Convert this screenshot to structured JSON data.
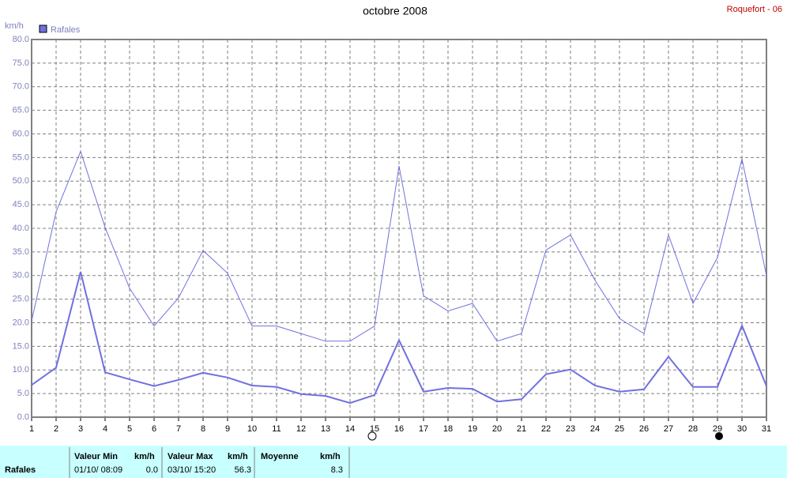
{
  "chart_data": {
    "type": "line",
    "title": "octobre 2008",
    "subtitle": "Roquefort - 06",
    "y_label": "km/h",
    "x": [
      1,
      2,
      3,
      4,
      5,
      6,
      7,
      8,
      9,
      10,
      11,
      12,
      13,
      14,
      15,
      16,
      17,
      18,
      19,
      20,
      21,
      22,
      23,
      24,
      25,
      26,
      27,
      28,
      29,
      30,
      31
    ],
    "xlim": [
      1,
      31
    ],
    "xticks": [
      1,
      2,
      3,
      4,
      5,
      6,
      7,
      8,
      9,
      10,
      11,
      12,
      13,
      14,
      15,
      16,
      17,
      18,
      19,
      20,
      21,
      22,
      23,
      24,
      25,
      26,
      27,
      28,
      29,
      30,
      31
    ],
    "ylim": [
      0,
      80
    ],
    "yticks": [
      {
        "value": 0,
        "label": "0.0"
      },
      {
        "value": 5,
        "label": "5.0"
      },
      {
        "value": 10,
        "label": "10.0"
      },
      {
        "value": 15,
        "label": "15.0"
      },
      {
        "value": 20,
        "label": "20.0"
      },
      {
        "value": 25,
        "label": "25.0"
      },
      {
        "value": 30,
        "label": "30.0"
      },
      {
        "value": 35,
        "label": "35.0"
      },
      {
        "value": 40,
        "label": "40.0"
      },
      {
        "value": 45,
        "label": "45.0"
      },
      {
        "value": 50,
        "label": "50.0"
      },
      {
        "value": 55,
        "label": "55.0"
      },
      {
        "value": 60,
        "label": "60.0"
      },
      {
        "value": 65,
        "label": "65.0"
      },
      {
        "value": 70,
        "label": "70.0"
      },
      {
        "value": 75,
        "label": "75.0"
      },
      {
        "value": 80,
        "label": "80.0"
      }
    ],
    "grid": true,
    "series": [
      {
        "name": "Rafales",
        "color": "#7070e0",
        "values": [
          20.4,
          43.5,
          56.3,
          40.2,
          27.3,
          19.3,
          25.3,
          35.3,
          30.5,
          19.3,
          19.3,
          17.7,
          16.1,
          16.1,
          19.3,
          53.2,
          25.7,
          22.5,
          24.1,
          16.1,
          17.7,
          35.4,
          38.6,
          29.0,
          20.9,
          17.7,
          38.6,
          24.1,
          33.8,
          54.7,
          30.0
        ]
      },
      {
        "color": "#7070e0",
        "values": [
          6.8,
          10.5,
          30.8,
          9.5,
          8.0,
          6.6,
          7.9,
          9.4,
          8.4,
          6.7,
          6.4,
          4.9,
          4.5,
          3.0,
          4.7,
          16.3,
          5.4,
          6.2,
          6.0,
          3.3,
          3.8,
          9.1,
          10.1,
          6.7,
          5.4,
          5.9,
          12.8,
          6.4,
          6.4,
          19.4,
          6.6
        ]
      }
    ]
  },
  "table": {
    "row_label": "Rafales",
    "columns": [
      {
        "header": "Valeur Min",
        "unit": "km/h",
        "date": "01/10/ 08:09",
        "value": "0.0"
      },
      {
        "header": "Valeur Max",
        "unit": "km/h",
        "date": "03/10/ 15:20",
        "value": "56.3"
      },
      {
        "header": "Moyenne",
        "unit": "km/h",
        "value": "8.3"
      }
    ]
  }
}
